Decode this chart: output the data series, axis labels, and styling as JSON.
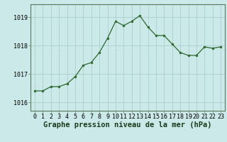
{
  "x": [
    0,
    1,
    2,
    3,
    4,
    5,
    6,
    7,
    8,
    9,
    10,
    11,
    12,
    13,
    14,
    15,
    16,
    17,
    18,
    19,
    20,
    21,
    22,
    23
  ],
  "y": [
    1016.4,
    1016.4,
    1016.55,
    1016.55,
    1016.65,
    1016.9,
    1017.3,
    1017.4,
    1017.75,
    1018.25,
    1018.85,
    1018.7,
    1018.85,
    1019.05,
    1018.65,
    1018.35,
    1018.35,
    1018.05,
    1017.75,
    1017.65,
    1017.65,
    1017.95,
    1017.9,
    1017.95
  ],
  "line_color": "#2d6a2d",
  "marker_color": "#2d6a2d",
  "bg_color": "#cce9e9",
  "grid_color": "#aacece",
  "xlabel": "Graphe pression niveau de la mer (hPa)",
  "xlabel_fontsize": 7.5,
  "ylim_min": 1015.7,
  "ylim_max": 1019.45,
  "xlim_min": -0.5,
  "xlim_max": 23.5,
  "yticks": [
    1016,
    1017,
    1018,
    1019
  ],
  "xticks": [
    0,
    1,
    2,
    3,
    4,
    5,
    6,
    7,
    8,
    9,
    10,
    11,
    12,
    13,
    14,
    15,
    16,
    17,
    18,
    19,
    20,
    21,
    22,
    23
  ],
  "tick_fontsize": 6,
  "border_color": "#5a7a5a"
}
